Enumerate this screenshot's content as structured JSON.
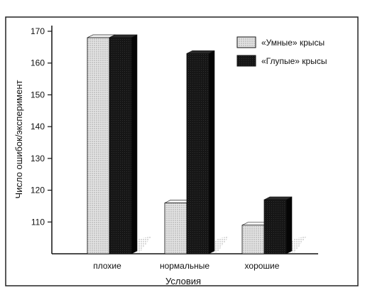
{
  "chart_data": {
    "type": "bar",
    "categories": [
      "плохие",
      "нормальные",
      "хорошие"
    ],
    "series": [
      {
        "name": "«Умные» крысы",
        "values": [
          168,
          116,
          109
        ]
      },
      {
        "name": "«Глупые» крысы",
        "values": [
          168,
          163,
          117
        ]
      }
    ],
    "xlabel": "Условия",
    "ylabel": "Число ошибок/эксперимент",
    "ylim": [
      100,
      170
    ],
    "yticks": [
      110,
      120,
      130,
      140,
      150,
      160,
      170
    ],
    "grid": false,
    "legend_position": "top-right",
    "three_d": true,
    "colors": {
      "series": [
        "#d9d9d9",
        "#1a1a1a"
      ],
      "floor": "#bfbfbf",
      "axis": "#111111"
    }
  }
}
